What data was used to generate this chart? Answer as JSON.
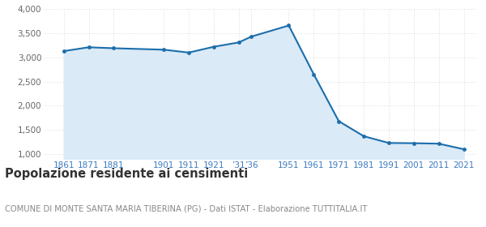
{
  "years": [
    1861,
    1871,
    1881,
    1901,
    1911,
    1921,
    1931,
    1936,
    1951,
    1961,
    1971,
    1981,
    1991,
    2001,
    2011,
    2021
  ],
  "population": [
    3130,
    3210,
    3190,
    3160,
    3100,
    3220,
    3310,
    3430,
    3660,
    2650,
    1680,
    1370,
    1230,
    1225,
    1215,
    1100
  ],
  "x_ticks": [
    1861,
    1871,
    1881,
    1901,
    1911,
    1921,
    1931,
    1936,
    1951,
    1961,
    1971,
    1981,
    1991,
    2001,
    2011,
    2021
  ],
  "x_tick_labels": [
    "1861",
    "1871",
    "1881",
    "1901",
    "1911",
    "1921",
    "’31",
    "’36",
    "1951",
    "1961",
    "1971",
    "1981",
    "1991",
    "2001",
    "2011",
    "2021"
  ],
  "ylim": [
    900,
    4000
  ],
  "yticks": [
    1000,
    1500,
    2000,
    2500,
    3000,
    3500,
    4000
  ],
  "ytick_labels": [
    "1,000",
    "1,500",
    "2,000",
    "2,500",
    "3,000",
    "3,500",
    "4,000"
  ],
  "line_color": "#1c6eab",
  "fill_color": "#daeaf7",
  "marker_color": "#1c6eab",
  "grid_color": "#d0d8e0",
  "bg_color": "#ffffff",
  "title": "Popolazione residente ai censimenti",
  "subtitle": "COMUNE DI MONTE SANTA MARIA TIBERINA (PG) - Dati ISTAT - Elaborazione TUTTITALIA.IT",
  "title_fontsize": 10.5,
  "subtitle_fontsize": 7.2,
  "tick_fontsize": 7.5,
  "ytick_fontsize": 7.5,
  "tick_color": "#3a7abf",
  "ytick_color": "#666666"
}
